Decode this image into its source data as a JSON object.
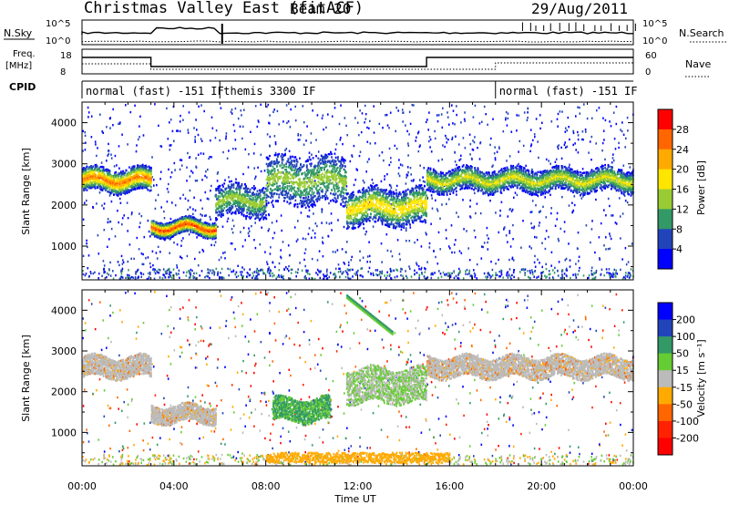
{
  "header": {
    "title": "Christmas Valley East (fitACF)",
    "beam": "Beam 20",
    "date": "29/Aug/2011"
  },
  "status_panels": {
    "nsky_label": "N.Sky",
    "nsearch_label": "N.Search",
    "freq_label_1": "Freq.",
    "freq_label_2": "[MHz]",
    "nave_label": "Nave",
    "cpid_label": "CPID",
    "nsky_ticks": [
      "10^5",
      "10^0"
    ],
    "nsearch_ticks": [
      "10^5",
      "10^0"
    ],
    "freq_ticks": [
      "18",
      "8"
    ],
    "nave_ticks": [
      "60",
      "0"
    ],
    "cpid_segments": [
      {
        "label": "normal (fast) -151 IF",
        "start_hour": 0,
        "end_hour": 6
      },
      {
        "label": "themis 3300 IF",
        "start_hour": 6,
        "end_hour": 18
      },
      {
        "label": "normal (fast) -151 IF",
        "start_hour": 18,
        "end_hour": 24
      }
    ]
  },
  "power_scale": {
    "label": "Power [dB]",
    "ticks": [
      "28",
      "24",
      "20",
      "16",
      "12",
      "8",
      "4"
    ],
    "colors": [
      "#ff0000",
      "#ff6600",
      "#ffaa00",
      "#ffe600",
      "#99cc33",
      "#339966",
      "#2244bb",
      "#0000ff"
    ]
  },
  "velocity_scale": {
    "label": "Velocity [m s⁻¹]",
    "ticks": [
      "200",
      "100",
      "50",
      "15",
      "-15",
      "-50",
      "-100",
      "-200"
    ],
    "colors": [
      "#0000ff",
      "#2244bb",
      "#339966",
      "#66cc33",
      "#bbbbbb",
      "#ffaa00",
      "#ff6600",
      "#ff2200",
      "#ff0000"
    ]
  },
  "chart_data": {
    "type": "heatmap",
    "x_hours": [
      0,
      4,
      8,
      12,
      16,
      20,
      24
    ],
    "xtick_labels": [
      "00:00",
      "04:00",
      "08:00",
      "12:00",
      "16:00",
      "20:00",
      "00:00"
    ],
    "xlabel": "Time UT",
    "ylabel": "Slant Range [km]",
    "yticks": [
      1000,
      2000,
      3000,
      4000
    ],
    "ylim": [
      180,
      4500
    ],
    "xlim": [
      0,
      24
    ],
    "power_bands": [
      {
        "t0": 0.0,
        "t1": 3.0,
        "r_mid": 2600,
        "r_half": 180,
        "level": 0.85
      },
      {
        "t0": 3.0,
        "t1": 5.8,
        "r_mid": 1450,
        "r_half": 120,
        "level": 0.95
      },
      {
        "t0": 5.8,
        "t1": 8.0,
        "r_mid": 2100,
        "r_half": 250,
        "level": 0.45
      },
      {
        "t0": 8.0,
        "t1": 11.5,
        "r_mid": 2600,
        "r_half": 380,
        "level": 0.45
      },
      {
        "t0": 11.5,
        "t1": 15.0,
        "r_mid": 1950,
        "r_half": 280,
        "level": 0.65
      },
      {
        "t0": 15.0,
        "t1": 24.0,
        "r_mid": 2600,
        "r_half": 180,
        "level": 0.55
      }
    ],
    "velocity_regions": [
      {
        "t0": 0.0,
        "t1": 3.0,
        "r_mid": 2600,
        "r_half": 180,
        "v": 0
      },
      {
        "t0": 3.0,
        "t1": 5.8,
        "r_mid": 1450,
        "r_half": 150,
        "v": 0
      },
      {
        "t0": 8.3,
        "t1": 10.8,
        "r_mid": 1550,
        "r_half": 200,
        "v": 60
      },
      {
        "t0": 11.5,
        "t1": 15.0,
        "r_mid": 2150,
        "r_half": 300,
        "v": 10
      },
      {
        "t0": 15.0,
        "t1": 24.0,
        "r_mid": 2600,
        "r_half": 180,
        "v": 0
      }
    ]
  }
}
